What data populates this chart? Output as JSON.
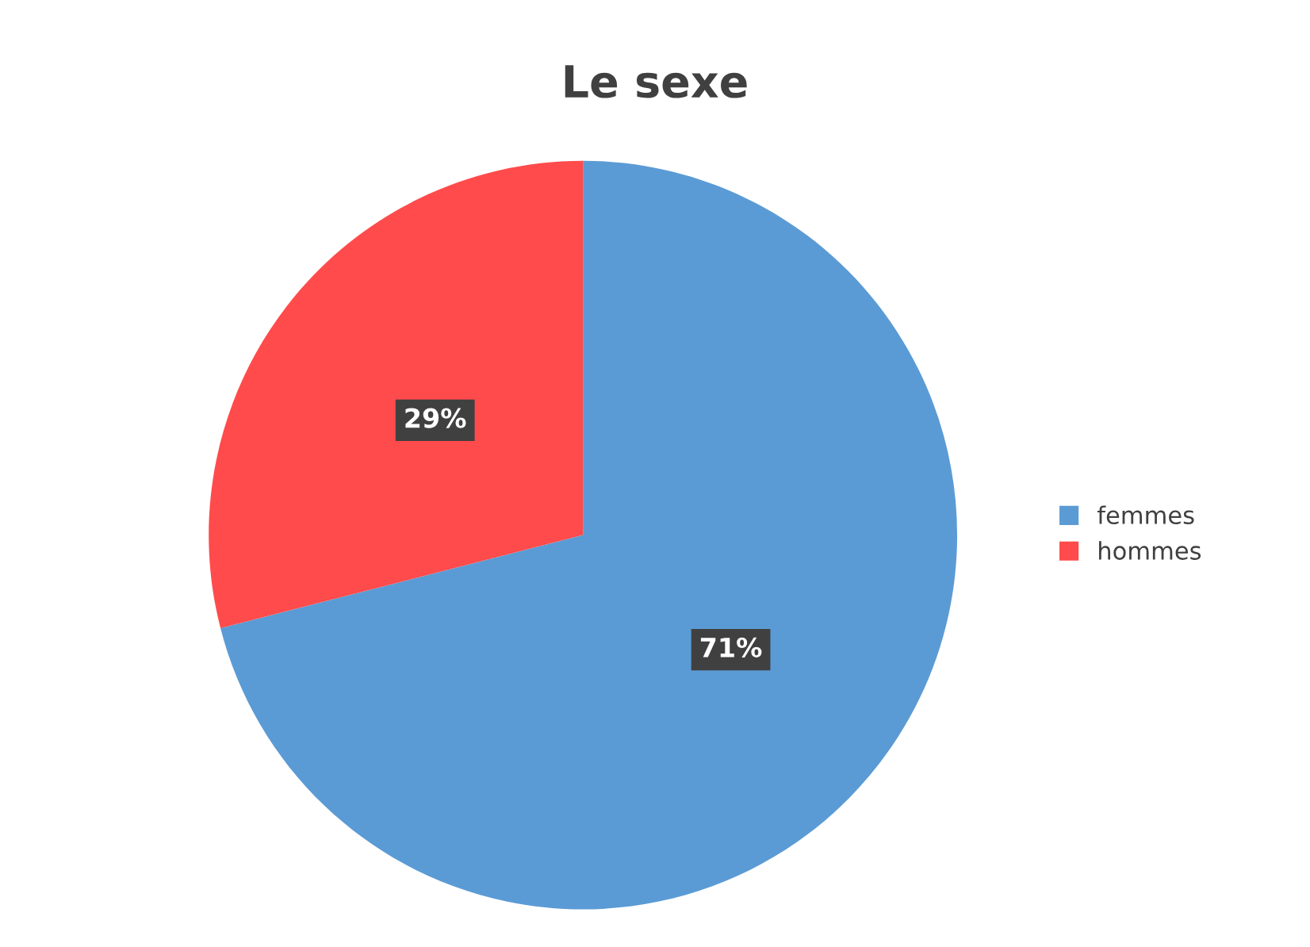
{
  "chart_data": {
    "type": "pie",
    "title": "Le sexe",
    "categories": [
      "femmes",
      "hommes"
    ],
    "values": [
      71,
      29
    ],
    "colors": [
      "#5b9bd5",
      "#ff4b4b"
    ],
    "value_labels": [
      "71%",
      "29%"
    ],
    "legend": "right"
  }
}
